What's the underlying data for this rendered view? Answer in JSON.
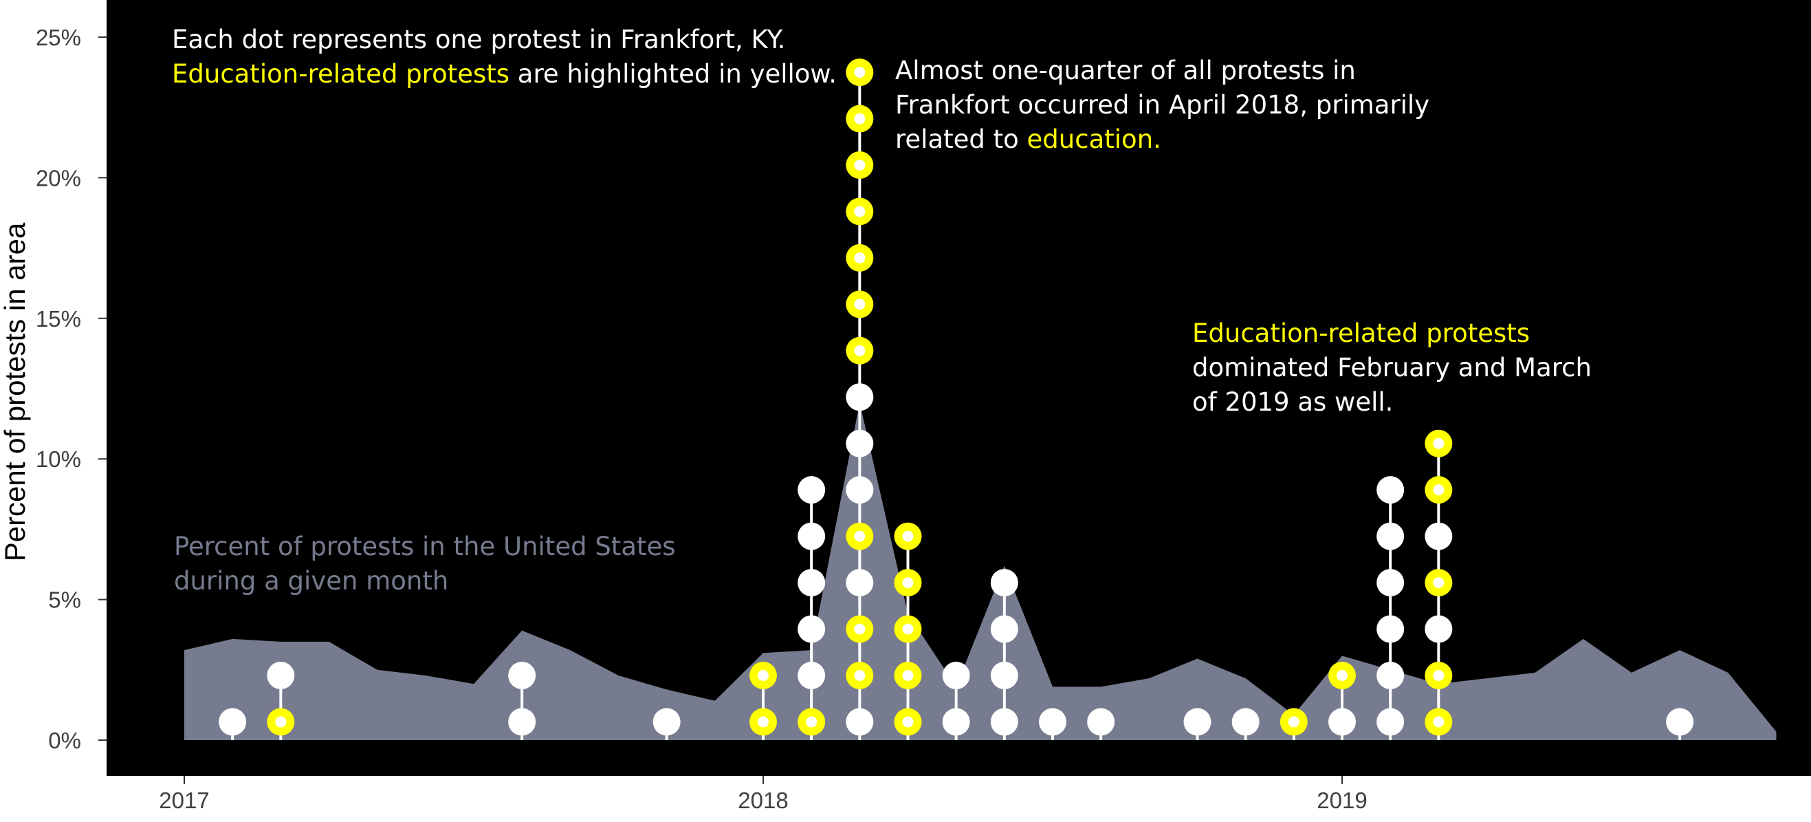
{
  "chart_data": {
    "type": "area",
    "ylabel": "Percent of protests in area",
    "y_ticks": [
      "0%",
      "5%",
      "10%",
      "15%",
      "20%",
      "25%"
    ],
    "ylim": [
      0,
      25
    ],
    "x_ticks": [
      "2017",
      "2018",
      "2019"
    ],
    "x_tick_values": [
      0,
      12,
      24
    ],
    "xlim": [
      -1.6,
      33.5
    ],
    "background": "#000000",
    "colors": {
      "area": "#767b8f",
      "highlight": "#ffff00",
      "dot": "#ffffff"
    },
    "area_series": {
      "x": [
        0,
        1,
        2,
        3,
        4,
        5,
        6,
        7,
        8,
        9,
        10,
        11,
        12,
        13,
        14,
        15,
        16,
        17,
        18,
        19,
        20,
        21,
        22,
        23,
        24,
        25,
        26,
        27,
        28,
        29,
        30,
        31,
        32
      ],
      "values": [
        3.2,
        3.6,
        3.5,
        3.5,
        2.5,
        2.3,
        2.0,
        3.9,
        3.2,
        2.3,
        1.8,
        1.4,
        3.1,
        3.2,
        12.0,
        4.5,
        1.9,
        6.2,
        1.9,
        1.9,
        2.2,
        2.9,
        2.2,
        0.9,
        3.0,
        2.5,
        2.0,
        2.2,
        2.4,
        3.6,
        2.4,
        3.2,
        2.4
      ]
    },
    "area_end": [
      33,
      0.3
    ],
    "dot_step": 1.65,
    "dot_columns": [
      {
        "x": 1,
        "dots": [
          "w"
        ]
      },
      {
        "x": 2,
        "dots": [
          "y",
          "w"
        ]
      },
      {
        "x": 7,
        "dots": [
          "w",
          "w"
        ]
      },
      {
        "x": 10,
        "dots": [
          "w"
        ]
      },
      {
        "x": 12,
        "dots": [
          "y",
          "y"
        ]
      },
      {
        "x": 13,
        "dots": [
          "y",
          "w",
          "w",
          "w",
          "w",
          "w"
        ]
      },
      {
        "x": 14,
        "dots": [
          "w",
          "y",
          "y",
          "w",
          "y",
          "w",
          "w",
          "w",
          "y",
          "y",
          "y",
          "y",
          "y",
          "y",
          "y"
        ]
      },
      {
        "x": 15,
        "dots": [
          "y",
          "y",
          "y",
          "y",
          "y"
        ]
      },
      {
        "x": 16,
        "dots": [
          "w",
          "w"
        ]
      },
      {
        "x": 17,
        "dots": [
          "w",
          "w",
          "w",
          "w"
        ]
      },
      {
        "x": 18,
        "dots": [
          "w"
        ]
      },
      {
        "x": 19,
        "dots": [
          "w"
        ]
      },
      {
        "x": 21,
        "dots": [
          "w"
        ]
      },
      {
        "x": 22,
        "dots": [
          "w"
        ]
      },
      {
        "x": 23,
        "dots": [
          "y"
        ]
      },
      {
        "x": 24,
        "dots": [
          "w",
          "y"
        ]
      },
      {
        "x": 25,
        "dots": [
          "w",
          "w",
          "w",
          "w",
          "w",
          "w"
        ]
      },
      {
        "x": 26,
        "dots": [
          "y",
          "y",
          "w",
          "y",
          "w",
          "y",
          "y"
        ]
      },
      {
        "x": 31,
        "dots": [
          "w"
        ]
      }
    ],
    "annotations": {
      "a1": [
        [
          {
            "t": "Each dot represents one protest in Frankfort, KY.",
            "c": "white"
          }
        ],
        [
          {
            "t": "Education-related protests",
            "c": "yellow"
          },
          {
            "t": " are highlighted in yellow.",
            "c": "white"
          }
        ]
      ],
      "a2": [
        [
          {
            "t": "Almost one-quarter of all protests in",
            "c": "white"
          }
        ],
        [
          {
            "t": "Frankfort occurred in April 2018, primarily",
            "c": "white"
          }
        ],
        [
          {
            "t": "related to ",
            "c": "white"
          },
          {
            "t": "education.",
            "c": "yellow"
          }
        ]
      ],
      "a3": [
        [
          {
            "t": "Education-related protests",
            "c": "yellow"
          }
        ],
        [
          {
            "t": "dominated February and March",
            "c": "white"
          }
        ],
        [
          {
            "t": "of 2019 as well.",
            "c": "white"
          }
        ]
      ],
      "a4": [
        [
          {
            "t": "Percent of protests in the United States",
            "c": "grey"
          }
        ],
        [
          {
            "t": "during a given month",
            "c": "grey"
          }
        ]
      ]
    }
  }
}
